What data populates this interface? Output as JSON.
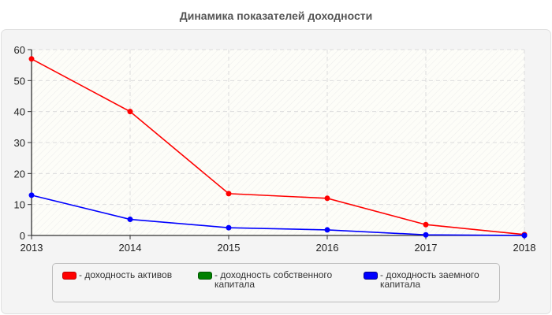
{
  "title": "Динамика показателей доходности",
  "chart_data": {
    "type": "line",
    "title": "Динамика показателей доходности",
    "xlabel": "",
    "ylabel": "",
    "categories": [
      "2013",
      "2014",
      "2015",
      "2016",
      "2017",
      "2018"
    ],
    "ylim": [
      0,
      60
    ],
    "yticks": [
      0,
      10,
      20,
      30,
      40,
      50,
      60
    ],
    "grid": true,
    "legend_position": "bottom",
    "series": [
      {
        "name": "- доходность активов",
        "color": "#ff0000",
        "values": [
          57,
          40,
          13.5,
          12,
          3.5,
          0.3
        ]
      },
      {
        "name": "- доходность собственного капитала",
        "color": "#008000",
        "values": []
      },
      {
        "name": "- доходность заемного капитала",
        "color": "#0000ff",
        "values": [
          13,
          5.2,
          2.5,
          1.8,
          0.2,
          0
        ]
      }
    ]
  },
  "legend": {
    "items": [
      {
        "label": "- доходность активов",
        "color": "#ff0000"
      },
      {
        "label": "- доходность собственного капитала",
        "color": "#008000"
      },
      {
        "label": "- доходность заемного капитала",
        "color": "#0000ff"
      }
    ]
  }
}
